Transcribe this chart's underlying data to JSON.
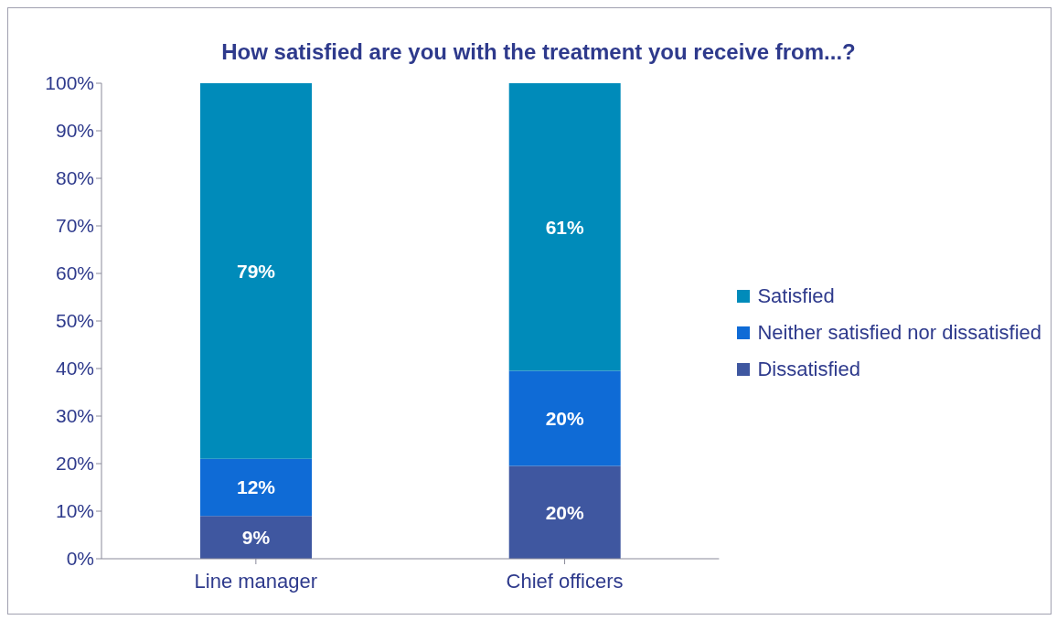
{
  "chart_data": {
    "type": "bar",
    "title": "How satisfied are you with the treatment you receive from...?",
    "categories": [
      "Line manager",
      "Chief officers"
    ],
    "stacked": true,
    "series": [
      {
        "name": "Dissatisfied",
        "color": "#3f57a0",
        "values": [
          9,
          19.5
        ],
        "value_labels": [
          "9%",
          "20%"
        ]
      },
      {
        "name": "Neither satisfied nor dissatisfied",
        "color": "#0f6bd6",
        "values": [
          12,
          20
        ],
        "value_labels": [
          "12%",
          "20%"
        ]
      },
      {
        "name": "Satisfied",
        "color": "#008bba",
        "values": [
          79,
          60.5
        ],
        "value_labels": [
          "79%",
          "61%"
        ]
      }
    ],
    "ylim": [
      0,
      100
    ],
    "yticks": [
      {
        "value": 0,
        "label": "0%"
      },
      {
        "value": 10,
        "label": "10%"
      },
      {
        "value": 20,
        "label": "20%"
      },
      {
        "value": 30,
        "label": "30%"
      },
      {
        "value": 40,
        "label": "40%"
      },
      {
        "value": 50,
        "label": "50%"
      },
      {
        "value": 60,
        "label": "60%"
      },
      {
        "value": 70,
        "label": "70%"
      },
      {
        "value": 80,
        "label": "80%"
      },
      {
        "value": 90,
        "label": "90%"
      },
      {
        "value": 100,
        "label": "100%"
      }
    ],
    "grid": false,
    "legend": "right"
  }
}
